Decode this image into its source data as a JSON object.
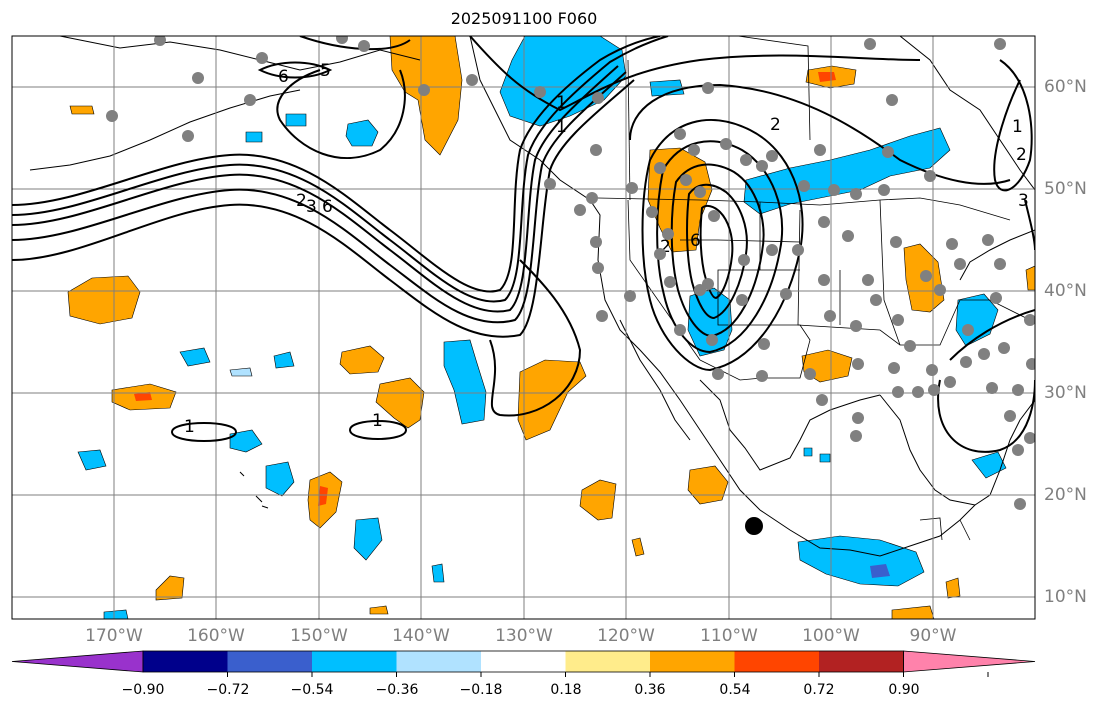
{
  "title": "2025091100 F060",
  "lon_labels": [
    "170°W",
    "160°W",
    "150°W",
    "140°W",
    "130°W",
    "120°W",
    "110°W",
    "100°W",
    "90°W"
  ],
  "lat_labels": [
    "60°N",
    "50°N",
    "40°N",
    "30°N",
    "20°N",
    "10°N"
  ],
  "contour_labels": [
    "6",
    "5",
    "1",
    "1",
    "2",
    "1",
    "2",
    "3",
    "6",
    "6",
    "1",
    "1",
    "2",
    "3",
    "2"
  ],
  "colorbar": {
    "ticks": [
      "−0.90",
      "−0.72",
      "−0.54",
      "−0.36",
      "−0.18",
      "0.18",
      "0.36",
      "0.54",
      "0.72",
      "0.90"
    ],
    "colors": [
      "#9932cc",
      "#00008b",
      "#3a5fcd",
      "#00bfff",
      "#b0e2ff",
      "#ffffff",
      "#ffec8b",
      "#ffa500",
      "#ff4500",
      "#b22222",
      "#ff82ab"
    ]
  },
  "large_marker": "center-dot"
}
